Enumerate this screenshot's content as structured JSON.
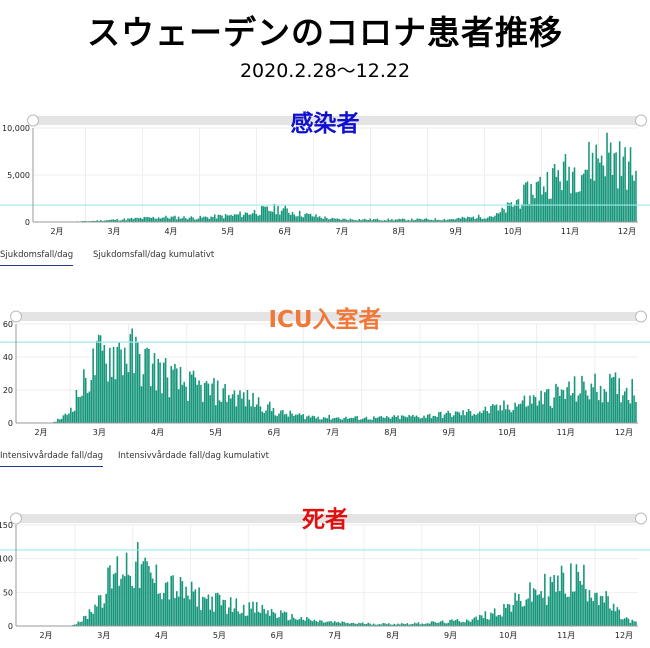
{
  "header": {
    "title": "スウェーデンのコロナ患者推移",
    "subtitle": "2020.2.28～12.22"
  },
  "colors": {
    "bar": "#16967a",
    "hline": "#9ee8e8",
    "slider": "#e4e4e4",
    "grid": "#eeeeee",
    "tab_underline": "#1e3a8a"
  },
  "chart_data": [
    {
      "type": "bar",
      "title": "感染者",
      "title_color": "#1010d0",
      "months": [
        "2月",
        "3月",
        "4月",
        "5月",
        "6月",
        "7月",
        "8月",
        "9月",
        "10月",
        "11月",
        "12月"
      ],
      "ylim": [
        0,
        10000
      ],
      "yticks": [
        "0",
        "5,000",
        "10,000"
      ],
      "ytick_values": [
        0,
        5000,
        10000
      ],
      "hline": 1800,
      "tabs": [
        "Sjukdomsfall/dag",
        "Sjukdomsfall/dag kumulativt"
      ],
      "profile": [
        [
          0,
          0
        ],
        [
          14,
          0
        ],
        [
          30,
          100
        ],
        [
          55,
          350
        ],
        [
          70,
          500
        ],
        [
          90,
          450
        ],
        [
          110,
          700
        ],
        [
          125,
          1200
        ],
        [
          135,
          1400
        ],
        [
          145,
          900
        ],
        [
          165,
          300
        ],
        [
          200,
          250
        ],
        [
          230,
          300
        ],
        [
          255,
          700
        ],
        [
          265,
          2000
        ],
        [
          275,
          3500
        ],
        [
          290,
          5000
        ],
        [
          305,
          6000
        ],
        [
          315,
          7500
        ],
        [
          325,
          6000
        ],
        [
          332,
          5500
        ]
      ]
    },
    {
      "type": "bar",
      "title": "ICU入室者",
      "title_color": "#f07838",
      "months": [
        "2月",
        "3月",
        "4月",
        "5月",
        "6月",
        "7月",
        "8月",
        "9月",
        "10月",
        "11月",
        "12月"
      ],
      "ylim": [
        0,
        60
      ],
      "yticks": [
        "0",
        "20",
        "40",
        "60"
      ],
      "ytick_values": [
        0,
        20,
        40,
        60
      ],
      "hline": 49,
      "tabs": [
        "Intensivvårdade fall/dag",
        "Intensivvårdade fall/dag kumulativt"
      ],
      "profile": [
        [
          0,
          0
        ],
        [
          18,
          0
        ],
        [
          26,
          5
        ],
        [
          36,
          25
        ],
        [
          42,
          38
        ],
        [
          55,
          44
        ],
        [
          62,
          40
        ],
        [
          70,
          35
        ],
        [
          85,
          25
        ],
        [
          100,
          20
        ],
        [
          115,
          17
        ],
        [
          130,
          12
        ],
        [
          140,
          6
        ],
        [
          155,
          4
        ],
        [
          175,
          3
        ],
        [
          195,
          3
        ],
        [
          215,
          4
        ],
        [
          240,
          6
        ],
        [
          255,
          8
        ],
        [
          270,
          12
        ],
        [
          285,
          16
        ],
        [
          300,
          20
        ],
        [
          315,
          22
        ],
        [
          332,
          20
        ]
      ]
    },
    {
      "type": "bar",
      "title": "死者",
      "title_color": "#e01010",
      "months": [
        "2月",
        "3月",
        "4月",
        "5月",
        "6月",
        "7月",
        "8月",
        "9月",
        "10月",
        "11月",
        "12月"
      ],
      "ylim": [
        0,
        150
      ],
      "yticks": [
        "0",
        "50",
        "100",
        "150"
      ],
      "ytick_values": [
        0,
        50,
        100,
        150
      ],
      "hline": 113,
      "tabs": [],
      "profile": [
        [
          0,
          0
        ],
        [
          28,
          0
        ],
        [
          36,
          12
        ],
        [
          44,
          45
        ],
        [
          52,
          78
        ],
        [
          58,
          92
        ],
        [
          64,
          86
        ],
        [
          72,
          70
        ],
        [
          80,
          60
        ],
        [
          90,
          48
        ],
        [
          100,
          40
        ],
        [
          110,
          33
        ],
        [
          120,
          28
        ],
        [
          130,
          24
        ],
        [
          145,
          14
        ],
        [
          160,
          7
        ],
        [
          180,
          4
        ],
        [
          200,
          3
        ],
        [
          215,
          4
        ],
        [
          230,
          6
        ],
        [
          245,
          10
        ],
        [
          258,
          22
        ],
        [
          270,
          38
        ],
        [
          280,
          52
        ],
        [
          290,
          62
        ],
        [
          300,
          70
        ],
        [
          306,
          64
        ],
        [
          312,
          50
        ],
        [
          318,
          30
        ],
        [
          325,
          12
        ],
        [
          332,
          5
        ]
      ]
    }
  ]
}
